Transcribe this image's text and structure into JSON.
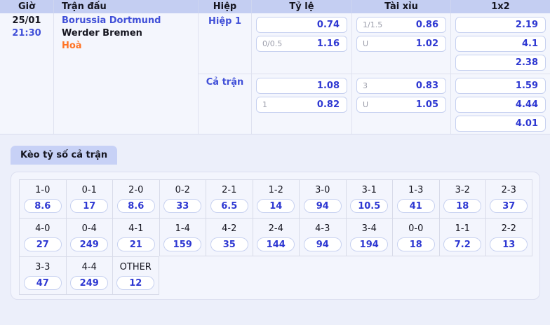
{
  "odds_table": {
    "columns": [
      "Giờ",
      "Trận đấu",
      "Hiệp",
      "Tỷ lệ",
      "Tài xỉu",
      "1x2"
    ],
    "match": {
      "date": "25/01",
      "time": "21:30",
      "home_team": "Borussia Dortmund",
      "away_team": "Werder Bremen",
      "draw_label": "Hoà"
    },
    "sections": [
      {
        "label": "Hiệp 1",
        "ty_le": [
          {
            "line": "",
            "odds": "0.74"
          },
          {
            "line": "0/0.5",
            "odds": "1.16"
          }
        ],
        "tai_xiu": [
          {
            "line": "1/1.5",
            "odds": "0.86"
          },
          {
            "line": "U",
            "odds": "1.02"
          }
        ],
        "one_x_two": [
          "2.19",
          "4.1",
          "2.38"
        ]
      },
      {
        "label": "Cả trận",
        "ty_le": [
          {
            "line": "",
            "odds": "1.08"
          },
          {
            "line": "1",
            "odds": "0.82"
          }
        ],
        "tai_xiu": [
          {
            "line": "3",
            "odds": "0.83"
          },
          {
            "line": "U",
            "odds": "1.05"
          }
        ],
        "one_x_two": [
          "1.59",
          "4.44",
          "4.01"
        ]
      }
    ]
  },
  "correct_score": {
    "title": "Kèo tỷ số cả trận",
    "rows": [
      [
        {
          "score": "1-0",
          "odds": "8.6"
        },
        {
          "score": "0-1",
          "odds": "17"
        },
        {
          "score": "2-0",
          "odds": "8.6"
        },
        {
          "score": "0-2",
          "odds": "33"
        },
        {
          "score": "2-1",
          "odds": "6.5"
        },
        {
          "score": "1-2",
          "odds": "14"
        },
        {
          "score": "3-0",
          "odds": "94"
        },
        {
          "score": "3-1",
          "odds": "10.5"
        },
        {
          "score": "1-3",
          "odds": "41"
        },
        {
          "score": "3-2",
          "odds": "18"
        },
        {
          "score": "2-3",
          "odds": "37"
        }
      ],
      [
        {
          "score": "4-0",
          "odds": "27"
        },
        {
          "score": "0-4",
          "odds": "249"
        },
        {
          "score": "4-1",
          "odds": "21"
        },
        {
          "score": "1-4",
          "odds": "159"
        },
        {
          "score": "4-2",
          "odds": "35"
        },
        {
          "score": "2-4",
          "odds": "144"
        },
        {
          "score": "4-3",
          "odds": "94"
        },
        {
          "score": "3-4",
          "odds": "194"
        },
        {
          "score": "0-0",
          "odds": "18"
        },
        {
          "score": "1-1",
          "odds": "7.2"
        },
        {
          "score": "2-2",
          "odds": "13"
        }
      ],
      [
        {
          "score": "3-3",
          "odds": "47"
        },
        {
          "score": "4-4",
          "odds": "249"
        },
        {
          "score": "OTHER",
          "odds": "12"
        }
      ]
    ]
  },
  "colors": {
    "header_bg": "#c4cef2",
    "tab_bg": "#c7d1f6",
    "odds_blue": "#2e38d2",
    "link_blue": "#4150d8",
    "draw_orange": "#ff7426",
    "page_bg": "#eceffa"
  }
}
